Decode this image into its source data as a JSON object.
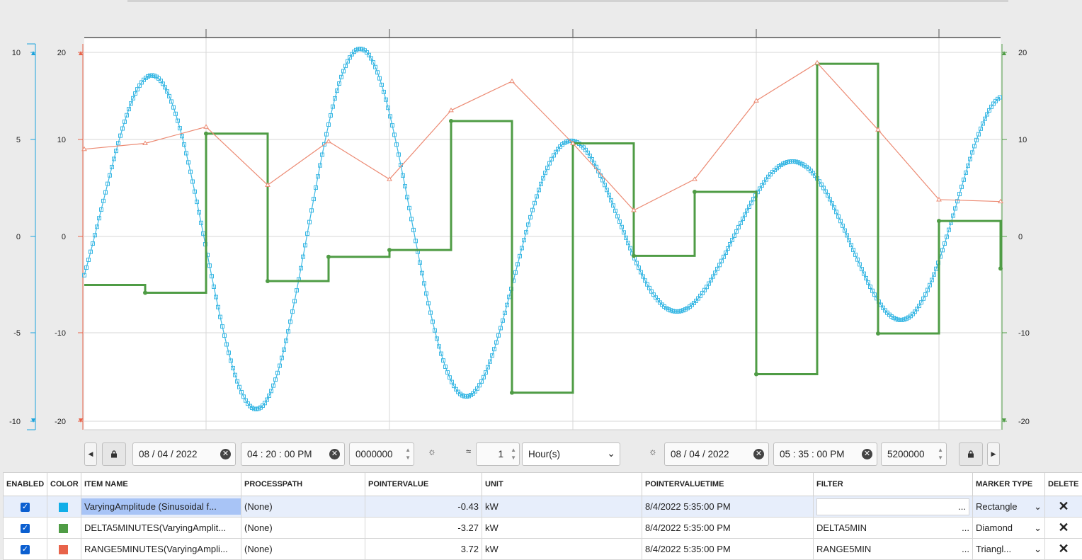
{
  "chart_data": {
    "type": "line",
    "axes": {
      "left_outer": {
        "ticks": [
          "10",
          "5",
          "0",
          "-5",
          "-10"
        ],
        "range": [
          -10,
          10
        ],
        "color": "#1ba3dc"
      },
      "left_inner": {
        "ticks": [
          "20",
          "10",
          "0",
          "-10",
          "-20"
        ],
        "range": [
          -20,
          20
        ],
        "color": "#e8634a"
      },
      "right": {
        "ticks": [
          "20",
          "10",
          "0",
          "-10",
          "-20"
        ],
        "range": [
          -20,
          20
        ],
        "color": "#4f9c45"
      }
    },
    "grid": true,
    "series": [
      {
        "name": "VaryingAmplitude (Sinusoidal f...",
        "axis": "left_outer",
        "color": "#3ab8e4",
        "marker": "square"
      },
      {
        "name": "DELTA5MINUTES(VaryingAmplit...",
        "axis": "right",
        "color": "#4f9c45",
        "marker": "diamond"
      },
      {
        "name": "RANGE5MINUTES(VaryingAmpli...",
        "axis": "left_inner",
        "color": "#ec8a73",
        "marker": "triangle"
      }
    ]
  },
  "controls": {
    "start_date": "08 / 04 / 2022",
    "start_time": "04 : 20 : 00  PM",
    "start_ms": "0000000",
    "interval_value": "1",
    "interval_unit": "Hour(s)",
    "end_date": "08 / 04 / 2022",
    "end_time": "05 : 35 : 00  PM",
    "end_ms": "5200000",
    "approx_symbol": "≈",
    "sun_symbol": "☼"
  },
  "table": {
    "headers": [
      "ENABLED",
      "COLOR",
      "ITEM NAME",
      "PROCESSPATH",
      "POINTERVALUE",
      "UNIT",
      "POINTERVALUETIME",
      "FILTER",
      "MARKER TYPE",
      "DELETE"
    ],
    "rows": [
      {
        "name": "VaryingAmplitude (Sinusoidal f...",
        "path": "(None)",
        "value": "-0.43",
        "unit": "kW",
        "time": "8/4/2022 5:35:00 PM",
        "filter": "",
        "marker": "Rectangle",
        "color": "#10aee8"
      },
      {
        "name": "DELTA5MINUTES(VaryingAmplit...",
        "path": "(None)",
        "value": "-3.27",
        "unit": "kW",
        "time": "8/4/2022 5:35:00 PM",
        "filter": "DELTA5MIN",
        "marker": "Diamond",
        "color": "#4f9c45"
      },
      {
        "name": "RANGE5MINUTES(VaryingAmpli...",
        "path": "(None)",
        "value": "3.72",
        "unit": "kW",
        "time": "8/4/2022 5:35:00 PM",
        "filter": "RANGE5MIN",
        "marker": "Triangl...",
        "color": "#e8634a"
      }
    ],
    "ellipsis": "..."
  }
}
